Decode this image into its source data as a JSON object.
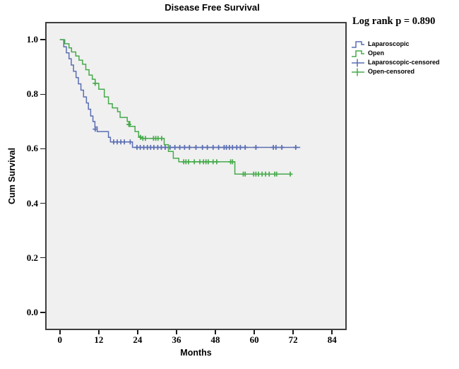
{
  "figure": {
    "title": "Disease Free Survival",
    "annotation": "Log rank p = 0.890",
    "x_axis": {
      "label": "Months",
      "ticks": [
        0,
        12,
        24,
        36,
        48,
        60,
        72,
        84
      ]
    },
    "y_axis": {
      "label": "Cum Survival",
      "ticks": [
        "1.0",
        "0.8",
        "0.6",
        "0.4",
        "0.2",
        "0.0"
      ]
    },
    "plot_background": "#f0f0f0",
    "frame_color": "#3e3e3e"
  },
  "legend": {
    "items": [
      {
        "label": "Laparoscopic",
        "type": "line",
        "color": "#5a6eb4"
      },
      {
        "label": "Open",
        "type": "line",
        "color": "#46aa4b"
      },
      {
        "label": "Laparoscopic-censored",
        "type": "censor",
        "color": "#5a6eb4"
      },
      {
        "label": "Open-censored",
        "type": "censor",
        "color": "#46aa4b"
      }
    ]
  },
  "chart_data": {
    "type": "line",
    "subtype": "kaplan-meier-step",
    "title": "Disease Free Survival",
    "xlabel": "Months",
    "ylabel": "Cum Survival",
    "xlim": [
      -4.1,
      88.1
    ],
    "ylim": [
      -0.06,
      1.06
    ],
    "x_ticks": [
      0,
      12,
      24,
      36,
      48,
      60,
      72,
      84
    ],
    "y_ticks": [
      0.0,
      0.2,
      0.4,
      0.6,
      0.8,
      1.0
    ],
    "grid": false,
    "legend_position": "right",
    "annotation": "Log rank p = 0.890",
    "series": [
      {
        "name": "Laparoscopic",
        "color": "#5a6eb4",
        "steps": [
          [
            0,
            1.0
          ],
          [
            1.2,
            0.974
          ],
          [
            2.0,
            0.952
          ],
          [
            2.8,
            0.93
          ],
          [
            3.5,
            0.907
          ],
          [
            4.2,
            0.884
          ],
          [
            5.0,
            0.861
          ],
          [
            5.7,
            0.838
          ],
          [
            6.5,
            0.815
          ],
          [
            7.3,
            0.79
          ],
          [
            8.2,
            0.768
          ],
          [
            8.8,
            0.745
          ],
          [
            9.5,
            0.72
          ],
          [
            10.2,
            0.7
          ],
          [
            10.8,
            0.68
          ],
          [
            11.5,
            0.663
          ],
          [
            15.0,
            0.642
          ],
          [
            15.6,
            0.625
          ],
          [
            22.4,
            0.605
          ],
          [
            74.2,
            0.605
          ]
        ],
        "censors": [
          [
            10.9,
            0.672
          ],
          [
            16.6,
            0.625
          ],
          [
            17.7,
            0.625
          ],
          [
            18.8,
            0.625
          ],
          [
            19.9,
            0.625
          ],
          [
            21.7,
            0.625
          ],
          [
            23.8,
            0.605
          ],
          [
            24.8,
            0.605
          ],
          [
            25.9,
            0.605
          ],
          [
            27.0,
            0.605
          ],
          [
            28.0,
            0.605
          ],
          [
            29.0,
            0.605
          ],
          [
            30.2,
            0.605
          ],
          [
            31.3,
            0.605
          ],
          [
            32.5,
            0.605
          ],
          [
            34.0,
            0.605
          ],
          [
            35.5,
            0.605
          ],
          [
            37.0,
            0.605
          ],
          [
            38.5,
            0.605
          ],
          [
            40.0,
            0.605
          ],
          [
            42.0,
            0.605
          ],
          [
            44.0,
            0.605
          ],
          [
            45.5,
            0.605
          ],
          [
            47.3,
            0.605
          ],
          [
            49.0,
            0.605
          ],
          [
            50.7,
            0.605
          ],
          [
            51.4,
            0.605
          ],
          [
            52.3,
            0.605
          ],
          [
            53.3,
            0.605
          ],
          [
            54.6,
            0.605
          ],
          [
            55.7,
            0.605
          ],
          [
            57.2,
            0.605
          ],
          [
            60.5,
            0.605
          ],
          [
            65.9,
            0.605
          ],
          [
            66.7,
            0.605
          ],
          [
            68.5,
            0.605
          ],
          [
            72.8,
            0.605
          ]
        ]
      },
      {
        "name": "Open",
        "color": "#46aa4b",
        "steps": [
          [
            0,
            1.0
          ],
          [
            1.5,
            0.985
          ],
          [
            2.8,
            0.97
          ],
          [
            3.6,
            0.955
          ],
          [
            4.9,
            0.94
          ],
          [
            5.9,
            0.925
          ],
          [
            7.0,
            0.91
          ],
          [
            8.0,
            0.89
          ],
          [
            9.0,
            0.87
          ],
          [
            10.0,
            0.855
          ],
          [
            10.9,
            0.84
          ],
          [
            12.0,
            0.818
          ],
          [
            13.7,
            0.79
          ],
          [
            15.0,
            0.765
          ],
          [
            16.2,
            0.75
          ],
          [
            17.8,
            0.736
          ],
          [
            18.6,
            0.715
          ],
          [
            20.8,
            0.7
          ],
          [
            21.6,
            0.682
          ],
          [
            23.2,
            0.663
          ],
          [
            24.3,
            0.645
          ],
          [
            25.0,
            0.638
          ],
          [
            32.2,
            0.615
          ],
          [
            33.5,
            0.59
          ],
          [
            35.0,
            0.565
          ],
          [
            36.7,
            0.552
          ],
          [
            54.0,
            0.507
          ],
          [
            71.5,
            0.507
          ]
        ],
        "censors": [
          [
            10.9,
            0.84
          ],
          [
            21.3,
            0.689
          ],
          [
            24.9,
            0.642
          ],
          [
            25.6,
            0.638
          ],
          [
            26.4,
            0.638
          ],
          [
            28.9,
            0.638
          ],
          [
            29.6,
            0.638
          ],
          [
            30.3,
            0.638
          ],
          [
            31.4,
            0.638
          ],
          [
            38.2,
            0.552
          ],
          [
            38.9,
            0.552
          ],
          [
            39.7,
            0.552
          ],
          [
            41.5,
            0.552
          ],
          [
            43.2,
            0.552
          ],
          [
            44.3,
            0.552
          ],
          [
            45.1,
            0.552
          ],
          [
            45.8,
            0.552
          ],
          [
            47.3,
            0.552
          ],
          [
            48.4,
            0.552
          ],
          [
            52.7,
            0.552
          ],
          [
            53.3,
            0.552
          ],
          [
            56.6,
            0.507
          ],
          [
            57.2,
            0.507
          ],
          [
            59.8,
            0.507
          ],
          [
            60.5,
            0.507
          ],
          [
            61.3,
            0.507
          ],
          [
            62.4,
            0.507
          ],
          [
            63.5,
            0.507
          ],
          [
            64.6,
            0.507
          ],
          [
            66.3,
            0.507
          ],
          [
            66.9,
            0.507
          ],
          [
            71.1,
            0.507
          ]
        ]
      }
    ]
  }
}
